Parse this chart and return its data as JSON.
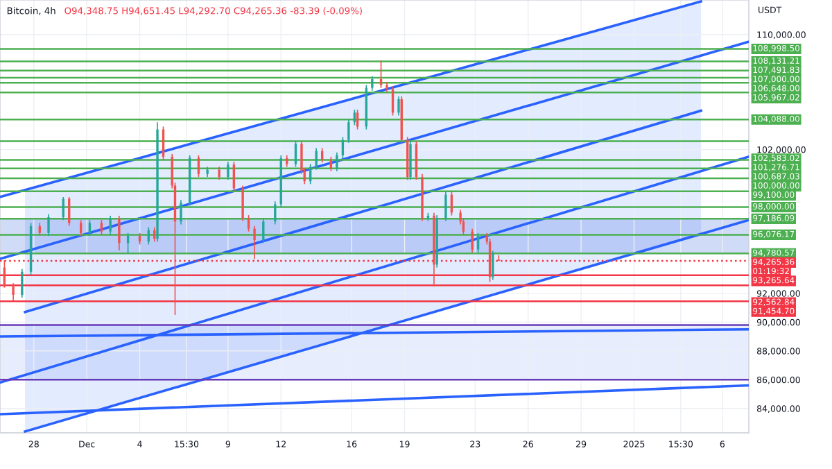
{
  "chart_data": {
    "type": "candlestick",
    "title": "Bitcoin, 4h",
    "subtitle": "O94,348.75 H94,651.45 L94,292.70 C94,265.36 -83.39 (-0.09%)",
    "ylabel": "USDT",
    "annotations": [
      "01:19:32"
    ],
    "colors": [
      "#ef5350",
      "#ef5350",
      "#26a69a",
      "#26a69a",
      "#ef5350",
      "#26a69a",
      "#26a69a",
      "#ef5350",
      "#ef5350",
      "#26a69a",
      "#ef5350",
      "#26a69a",
      "#ef5350",
      "#26a69a",
      "#ef5350",
      "#26a69a",
      "#ef5350",
      "#26a69a",
      "#ef5350",
      "#ef5350",
      "#ef5350",
      "#26a69a",
      "#26a69a",
      "#ef5350",
      "#26a69a",
      "#ef5350",
      "#26a69a",
      "#ef5350",
      "#ef5350",
      "#ef5350",
      "#ef5350",
      "#26a69a",
      "#26a69a",
      "#26a69a",
      "#ef5350",
      "#26a69a",
      "#ef5350",
      "#ef5350",
      "#26a69a",
      "#26a69a",
      "#ef5350",
      "#ef5350",
      "#26a69a",
      "#26a69a",
      "#26a69a",
      "#26a69a",
      "#ef5350",
      "#26a69a",
      "#26a69a",
      "#ef5350",
      "#ef5350",
      "#ef5350",
      "#26a69a",
      "#ef5350",
      "#ef5350",
      "#26a69a",
      "#ef5350",
      "#ef5350",
      "#26a69a",
      "#ef5350",
      "#26a69a",
      "#26a69a",
      "#ef5350",
      "#ef5350",
      "#ef5350",
      "#ef5350",
      "#26a69a",
      "#ef5350",
      "#ef5350",
      "#26a69a",
      "#ef5350"
    ],
    "x": [
      "2024-11-26T08:00",
      "2024-11-26T20:00",
      "2024-11-27T08:00",
      "2024-11-27T20:00",
      "2024-11-28T08:00",
      "2024-11-28T20:00",
      "2024-11-29T16:00",
      "2024-11-30T00:00",
      "2024-11-30T16:00",
      "2024-12-01T04:00",
      "2024-12-01T20:00",
      "2024-12-02T08:00",
      "2024-12-02T20:00",
      "2024-12-03T08:00",
      "2024-12-04T00:00",
      "2024-12-04T12:00",
      "2024-12-04T20:00",
      "2024-12-05T00:00",
      "2024-12-05T08:00",
      "2024-12-05T20:00",
      "2024-12-06T00:00",
      "2024-12-06T08:00",
      "2024-12-06T20:00",
      "2024-12-07T08:00",
      "2024-12-07T20:00",
      "2024-12-08T12:00",
      "2024-12-09T00:00",
      "2024-12-09T08:00",
      "2024-12-09T20:00",
      "2024-12-10T04:00",
      "2024-12-10T12:00",
      "2024-12-11T00:00",
      "2024-12-11T16:00",
      "2024-12-12T00:00",
      "2024-12-12T08:00",
      "2024-12-12T20:00",
      "2024-12-13T04:00",
      "2024-12-13T08:00",
      "2024-12-13T16:00",
      "2024-12-14T00:00",
      "2024-12-14T08:00",
      "2024-12-14T20:00",
      "2024-12-15T04:00",
      "2024-12-15T12:00",
      "2024-12-15T20:00",
      "2024-12-16T04:00",
      "2024-12-16T08:00",
      "2024-12-16T20:00",
      "2024-12-17T04:00",
      "2024-12-17T16:00",
      "2024-12-18T00:00",
      "2024-12-18T08:00",
      "2024-12-18T16:00",
      "2024-12-18T20:00",
      "2024-12-19T04:00",
      "2024-12-19T08:00",
      "2024-12-19T16:00",
      "2024-12-20T00:00",
      "2024-12-20T08:00",
      "2024-12-20T16:00",
      "2024-12-20T20:00",
      "2024-12-21T08:00",
      "2024-12-21T16:00",
      "2024-12-22T04:00",
      "2024-12-22T08:00",
      "2024-12-22T20:00",
      "2024-12-23T04:00",
      "2024-12-23T16:00",
      "2024-12-23T20:00",
      "2024-12-24T00:00",
      "2024-12-24T08:00"
    ],
    "ohlc": [
      [
        93800,
        94300,
        92400,
        92480
      ],
      [
        92480,
        92700,
        91500,
        91900
      ],
      [
        91900,
        93700,
        91700,
        93500
      ],
      [
        93500,
        96900,
        93300,
        96670
      ],
      [
        96670,
        96900,
        96000,
        96200
      ],
      [
        96200,
        97500,
        96000,
        97300
      ],
      [
        97300,
        98700,
        97100,
        98570
      ],
      [
        98570,
        98700,
        96700,
        96900
      ],
      [
        96900,
        97100,
        96000,
        96200
      ],
      [
        96200,
        97100,
        96000,
        96900
      ],
      [
        96900,
        97100,
        96100,
        96300
      ],
      [
        96300,
        97400,
        96100,
        97200
      ],
      [
        97200,
        97400,
        95000,
        95500
      ],
      [
        95500,
        96200,
        94800,
        96000
      ],
      [
        96000,
        96200,
        95400,
        95600
      ],
      [
        95600,
        96600,
        95400,
        96400
      ],
      [
        96400,
        96600,
        95600,
        95800
      ],
      [
        95800,
        103900,
        95600,
        103400
      ],
      [
        103400,
        103600,
        101300,
        101500
      ],
      [
        101500,
        101700,
        99300,
        99500
      ],
      [
        99500,
        99700,
        90500,
        97000
      ],
      [
        97000,
        98500,
        96800,
        98300
      ],
      [
        98300,
        101600,
        98100,
        101430
      ],
      [
        101430,
        101600,
        100100,
        100300
      ],
      [
        100300,
        100800,
        100100,
        100600
      ],
      [
        100600,
        100800,
        99900,
        100100
      ],
      [
        100100,
        101150,
        99900,
        100950
      ],
      [
        100950,
        101150,
        99100,
        99300
      ],
      [
        99300,
        99500,
        97040,
        97240
      ],
      [
        97240,
        97440,
        96300,
        96500
      ],
      [
        96500,
        96700,
        94400,
        95700
      ],
      [
        95700,
        97200,
        95500,
        97000
      ],
      [
        97000,
        98400,
        96800,
        98200
      ],
      [
        98200,
        101600,
        98000,
        101400
      ],
      [
        101400,
        101600,
        100800,
        101000
      ],
      [
        101000,
        102600,
        100800,
        102400
      ],
      [
        102400,
        102600,
        100300,
        100500
      ],
      [
        100500,
        100700,
        99600,
        99800
      ],
      [
        99800,
        101000,
        99600,
        100800
      ],
      [
        100800,
        102100,
        100600,
        101900
      ],
      [
        101900,
        102100,
        101100,
        101300
      ],
      [
        101300,
        101500,
        100500,
        100700
      ],
      [
        100700,
        101800,
        100500,
        101600
      ],
      [
        101600,
        102870,
        101400,
        102670
      ],
      [
        102670,
        104100,
        102470,
        103900
      ],
      [
        103900,
        104770,
        103700,
        104570
      ],
      [
        104570,
        104770,
        103400,
        103600
      ],
      [
        103600,
        106490,
        103400,
        106290
      ],
      [
        106290,
        107100,
        106090,
        106900
      ],
      [
        106900,
        108190,
        106280,
        106480
      ],
      [
        106480,
        106680,
        105990,
        106190
      ],
      [
        106190,
        106390,
        104370,
        104570
      ],
      [
        104570,
        105700,
        104370,
        105500
      ],
      [
        105500,
        105700,
        102470,
        102670
      ],
      [
        102670,
        102870,
        99900,
        100100
      ],
      [
        100100,
        102580,
        99900,
        102380
      ],
      [
        102380,
        102580,
        99900,
        100100
      ],
      [
        100100,
        100300,
        97040,
        97240
      ],
      [
        97240,
        97600,
        97040,
        97400
      ],
      [
        97400,
        97600,
        92480,
        94000
      ],
      [
        94000,
        97440,
        93800,
        97240
      ],
      [
        97240,
        99060,
        97040,
        98860
      ],
      [
        98860,
        99060,
        97420,
        97620
      ],
      [
        97620,
        97820,
        96800,
        97000
      ],
      [
        97000,
        97200,
        96090,
        96290
      ],
      [
        96290,
        96490,
        94850,
        95050
      ],
      [
        95050,
        96200,
        94850,
        96000
      ],
      [
        96000,
        96200,
        95400,
        95600
      ],
      [
        95600,
        95800,
        92800,
        93140
      ],
      [
        93140,
        94960,
        92940,
        94760
      ],
      [
        94350,
        94650,
        94260,
        94265
      ]
    ],
    "series": [
      {
        "type": "line",
        "color": "#2962ff",
        "x": [
          "2024-11-26T02:00",
          "2025-01-04T19:00"
        ],
        "values": [
          98700,
          112300
        ]
      },
      {
        "type": "line",
        "color": "#2962ff",
        "x": [
          "2024-11-26T02:00",
          "2025-01-07T12:00"
        ],
        "values": [
          94400,
          109500
        ]
      },
      {
        "type": "line",
        "color": "#2962ff",
        "x": [
          "2024-11-27T12:00",
          "2025-01-04T19:00"
        ],
        "values": [
          90700,
          104700
        ],
        "lower": [
          82400,
          96100
        ],
        "upper": [
          99200,
          112300
        ]
      },
      {
        "type": "line",
        "color": "#2962ff",
        "x": [
          "2024-11-26T02:00",
          "2025-01-07T12:00"
        ],
        "values": [
          85800,
          101500
        ]
      },
      {
        "type": "line",
        "color": "#2962ff",
        "x": [
          "2024-11-27T12:00",
          "2025-01-07T12:00"
        ],
        "values": [
          82400,
          97100
        ]
      },
      {
        "type": "line",
        "color": "#2962ff",
        "x": [
          "2024-11-26T02:00",
          "2025-01-07T12:00"
        ],
        "values": [
          89000,
          89500
        ]
      },
      {
        "type": "line",
        "color": "#2962ff",
        "x": [
          "2024-11-26T02:00",
          "2025-01-07T12:00"
        ],
        "values": [
          83600,
          85600
        ]
      }
    ],
    "bands": [
      {
        "axis": "y",
        "from": 94730,
        "to": 97240,
        "color": "#a9bdf0"
      },
      {
        "axis": "y",
        "from": 86000,
        "to": 89800,
        "color": "#d3defa"
      }
    ],
    "ref_lines": [
      {
        "axis": "y",
        "value": 108998.5,
        "label": "108,998.50",
        "color": "#4caf50"
      },
      {
        "axis": "y",
        "value": 108131.21,
        "label": "108,131.21",
        "color": "#4caf50"
      },
      {
        "axis": "y",
        "value": 107491.83,
        "label": "107,491.83",
        "color": "#4caf50"
      },
      {
        "axis": "y",
        "value": 107000,
        "label": "107,000.00",
        "color": "#4caf50"
      },
      {
        "axis": "y",
        "value": 106648,
        "label": "106,648.00",
        "color": "#4caf50"
      },
      {
        "axis": "y",
        "value": 105967.02,
        "label": "105,967.02",
        "color": "#4caf50"
      },
      {
        "axis": "y",
        "value": 104088,
        "label": "104,088.00",
        "color": "#4caf50"
      },
      {
        "axis": "y",
        "value": 102583.02,
        "label": "102,583.02",
        "color": "#4caf50"
      },
      {
        "axis": "y",
        "value": 101276.71,
        "label": "101,276.71",
        "color": "#4caf50"
      },
      {
        "axis": "y",
        "value": 100687.03,
        "label": "100,687.03",
        "color": "#4caf50"
      },
      {
        "axis": "y",
        "value": 100000,
        "label": "100,000.00",
        "color": "#4caf50"
      },
      {
        "axis": "y",
        "value": 99100,
        "label": "99,100.00",
        "color": "#4caf50"
      },
      {
        "axis": "y",
        "value": 98000,
        "label": "98,000.00",
        "color": "#4caf50"
      },
      {
        "axis": "y",
        "value": 97186.09,
        "label": "97,186.09",
        "color": "#4caf50"
      },
      {
        "axis": "y",
        "value": 96076.17,
        "label": "96,076.17",
        "color": "#4caf50"
      },
      {
        "axis": "y",
        "value": 94780.57,
        "label": "94,780.57",
        "color": "#4caf50"
      },
      {
        "axis": "y",
        "value": 94265.36,
        "label": "94,265.36",
        "color": "#f23645",
        "line_style": "dotted"
      },
      {
        "axis": "y",
        "value": 93265.64,
        "label": "93,265.64",
        "color": "#f23645"
      },
      {
        "axis": "y",
        "value": 92562.84,
        "label": "92,562.84",
        "color": "#f23645"
      },
      {
        "axis": "y",
        "value": 91454.7,
        "label": "91,454.70",
        "color": "#f23645"
      },
      {
        "axis": "y",
        "value": 89800,
        "label": null,
        "color": "#673ab7"
      },
      {
        "axis": "y",
        "value": 86000,
        "label": null,
        "color": "#673ab7"
      }
    ],
    "xlim": [
      "2024-11-26T02:00",
      "2025-01-07T12:00"
    ],
    "xticks": [
      {
        "value": "2024-11-28",
        "label": "28"
      },
      {
        "value": "2024-12-01",
        "label": "Dec"
      },
      {
        "value": "2024-12-04",
        "label": "4"
      },
      {
        "value": "2024-12-06T15:30",
        "label": "15:30"
      },
      {
        "value": "2024-12-09",
        "label": "9"
      },
      {
        "value": "2024-12-12",
        "label": "12"
      },
      {
        "value": "2024-12-16",
        "label": "16"
      },
      {
        "value": "2024-12-19",
        "label": "19"
      },
      {
        "value": "2024-12-23",
        "label": "23"
      },
      {
        "value": "2024-12-26",
        "label": "26"
      },
      {
        "value": "2024-12-29",
        "label": "29"
      },
      {
        "value": "2025-01-01",
        "label": "2025"
      },
      {
        "value": "2025-01-03T15:30",
        "label": "15:30"
      },
      {
        "value": "2025-01-06",
        "label": "6"
      }
    ],
    "ylim": [
      82300,
      112400
    ],
    "yticks": [
      {
        "value": 84000,
        "label": "84,000.00"
      },
      {
        "value": 86000,
        "label": "86,000.00"
      },
      {
        "value": 88000,
        "label": "88,000.00"
      },
      {
        "value": 90000,
        "label": "90,000.00"
      },
      {
        "value": 92000,
        "label": "92,000.00"
      },
      {
        "value": 102000,
        "label": "102,000.00"
      },
      {
        "value": 110000,
        "label": "110,000.00"
      }
    ],
    "grid": true,
    "line_style": "solid",
    "marker": "none"
  }
}
